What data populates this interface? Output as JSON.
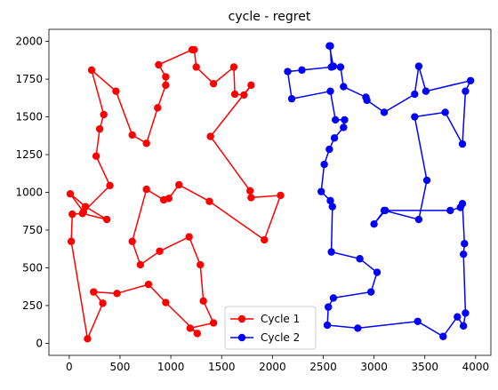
{
  "chart_data": {
    "type": "line",
    "title": "cycle - regret",
    "xlabel": "",
    "ylabel": "",
    "xlim": [
      -200,
      4150
    ],
    "ylim": [
      -80,
      2080
    ],
    "xticks": [
      0,
      500,
      1000,
      1500,
      2000,
      2500,
      3000,
      3500,
      4000
    ],
    "yticks": [
      0,
      250,
      500,
      750,
      1000,
      1250,
      1500,
      1750,
      2000
    ],
    "grid": false,
    "legend": {
      "position": "lower-center"
    },
    "series": [
      {
        "name": "Cycle 1",
        "color": "#ff0000",
        "marker": "circle",
        "points": [
          [
            1230,
            1945
          ],
          [
            1250,
            1830
          ],
          [
            1420,
            1720
          ],
          [
            1620,
            1830
          ],
          [
            1630,
            1650
          ],
          [
            1720,
            1645
          ],
          [
            1790,
            1710
          ],
          [
            1390,
            1370
          ],
          [
            1780,
            1010
          ],
          [
            1790,
            965
          ],
          [
            2080,
            980
          ],
          [
            1920,
            685
          ],
          [
            1380,
            940
          ],
          [
            1080,
            1050
          ],
          [
            980,
            960
          ],
          [
            930,
            950
          ],
          [
            760,
            1020
          ],
          [
            620,
            675
          ],
          [
            700,
            520
          ],
          [
            890,
            610
          ],
          [
            1180,
            705
          ],
          [
            1290,
            520
          ],
          [
            1320,
            280
          ],
          [
            1420,
            135
          ],
          [
            1190,
            100
          ],
          [
            1260,
            65
          ],
          [
            950,
            270
          ],
          [
            780,
            390
          ],
          [
            470,
            330
          ],
          [
            240,
            340
          ],
          [
            330,
            265
          ],
          [
            180,
            30
          ],
          [
            20,
            675
          ],
          [
            30,
            855
          ],
          [
            130,
            860
          ],
          [
            370,
            820
          ],
          [
            160,
            905
          ],
          [
            10,
            990
          ],
          [
            140,
            870
          ],
          [
            400,
            1045
          ],
          [
            265,
            1240
          ],
          [
            300,
            1420
          ],
          [
            340,
            1515
          ],
          [
            220,
            1810
          ],
          [
            460,
            1670
          ],
          [
            620,
            1380
          ],
          [
            760,
            1325
          ],
          [
            870,
            1560
          ],
          [
            950,
            1710
          ],
          [
            950,
            1765
          ],
          [
            880,
            1845
          ],
          [
            1210,
            1945
          ]
        ]
      },
      {
        "name": "Cycle 2",
        "color": "#0000ff",
        "marker": "circle",
        "points": [
          [
            2560,
            1970
          ],
          [
            2600,
            1835
          ],
          [
            2670,
            1830
          ],
          [
            2700,
            1700
          ],
          [
            2920,
            1630
          ],
          [
            2930,
            1610
          ],
          [
            3100,
            1530
          ],
          [
            3400,
            1650
          ],
          [
            3440,
            1835
          ],
          [
            3510,
            1670
          ],
          [
            3950,
            1740
          ],
          [
            3900,
            1670
          ],
          [
            3870,
            1320
          ],
          [
            3700,
            1530
          ],
          [
            3400,
            1500
          ],
          [
            3520,
            1080
          ],
          [
            3440,
            820
          ],
          [
            3100,
            880
          ],
          [
            3000,
            790
          ],
          [
            3110,
            880
          ],
          [
            3750,
            880
          ],
          [
            3850,
            900
          ],
          [
            3870,
            925
          ],
          [
            3890,
            660
          ],
          [
            3880,
            590
          ],
          [
            3900,
            200
          ],
          [
            3880,
            115
          ],
          [
            3820,
            175
          ],
          [
            3680,
            45
          ],
          [
            3430,
            145
          ],
          [
            2840,
            100
          ],
          [
            2540,
            120
          ],
          [
            2550,
            240
          ],
          [
            2600,
            300
          ],
          [
            2970,
            340
          ],
          [
            3030,
            470
          ],
          [
            2860,
            560
          ],
          [
            2580,
            605
          ],
          [
            2590,
            905
          ],
          [
            2570,
            945
          ],
          [
            2480,
            1005
          ],
          [
            2510,
            1185
          ],
          [
            2560,
            1285
          ],
          [
            2610,
            1360
          ],
          [
            2700,
            1430
          ],
          [
            2710,
            1480
          ],
          [
            2620,
            1480
          ],
          [
            2570,
            1670
          ],
          [
            2190,
            1620
          ],
          [
            2150,
            1800
          ],
          [
            2290,
            1810
          ],
          [
            2580,
            1830
          ],
          [
            2570,
            1970
          ]
        ]
      }
    ]
  }
}
